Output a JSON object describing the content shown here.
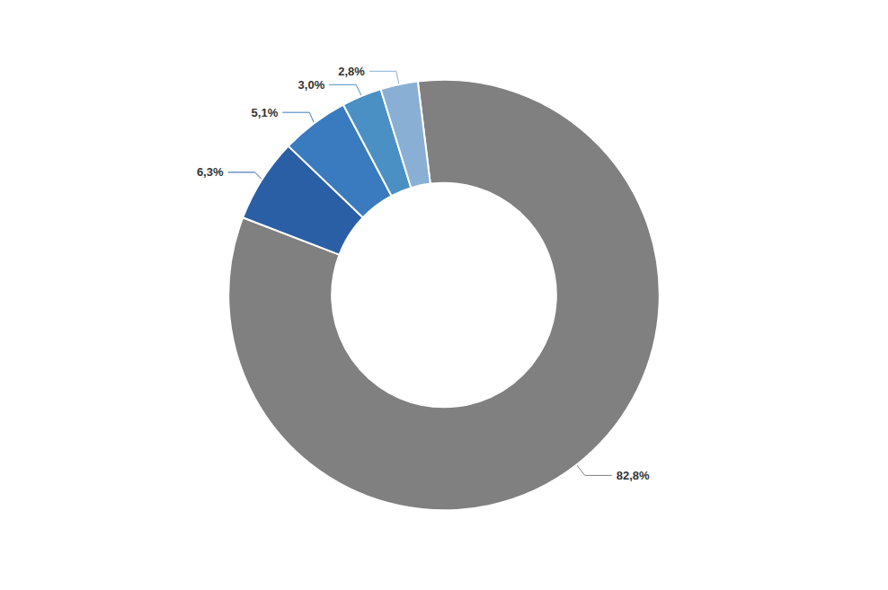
{
  "chart_data": {
    "type": "pie",
    "values": [
      82.8,
      6.3,
      5.1,
      3.0,
      2.8
    ],
    "value_labels": [
      "82,8%",
      "6,3%",
      "5,1%",
      "3,0%",
      "2,8%"
    ],
    "colors": [
      "#808080",
      "#2b5fa5",
      "#3a7abf",
      "#4a90c4",
      "#8aafd4"
    ],
    "data_labels": true
  }
}
